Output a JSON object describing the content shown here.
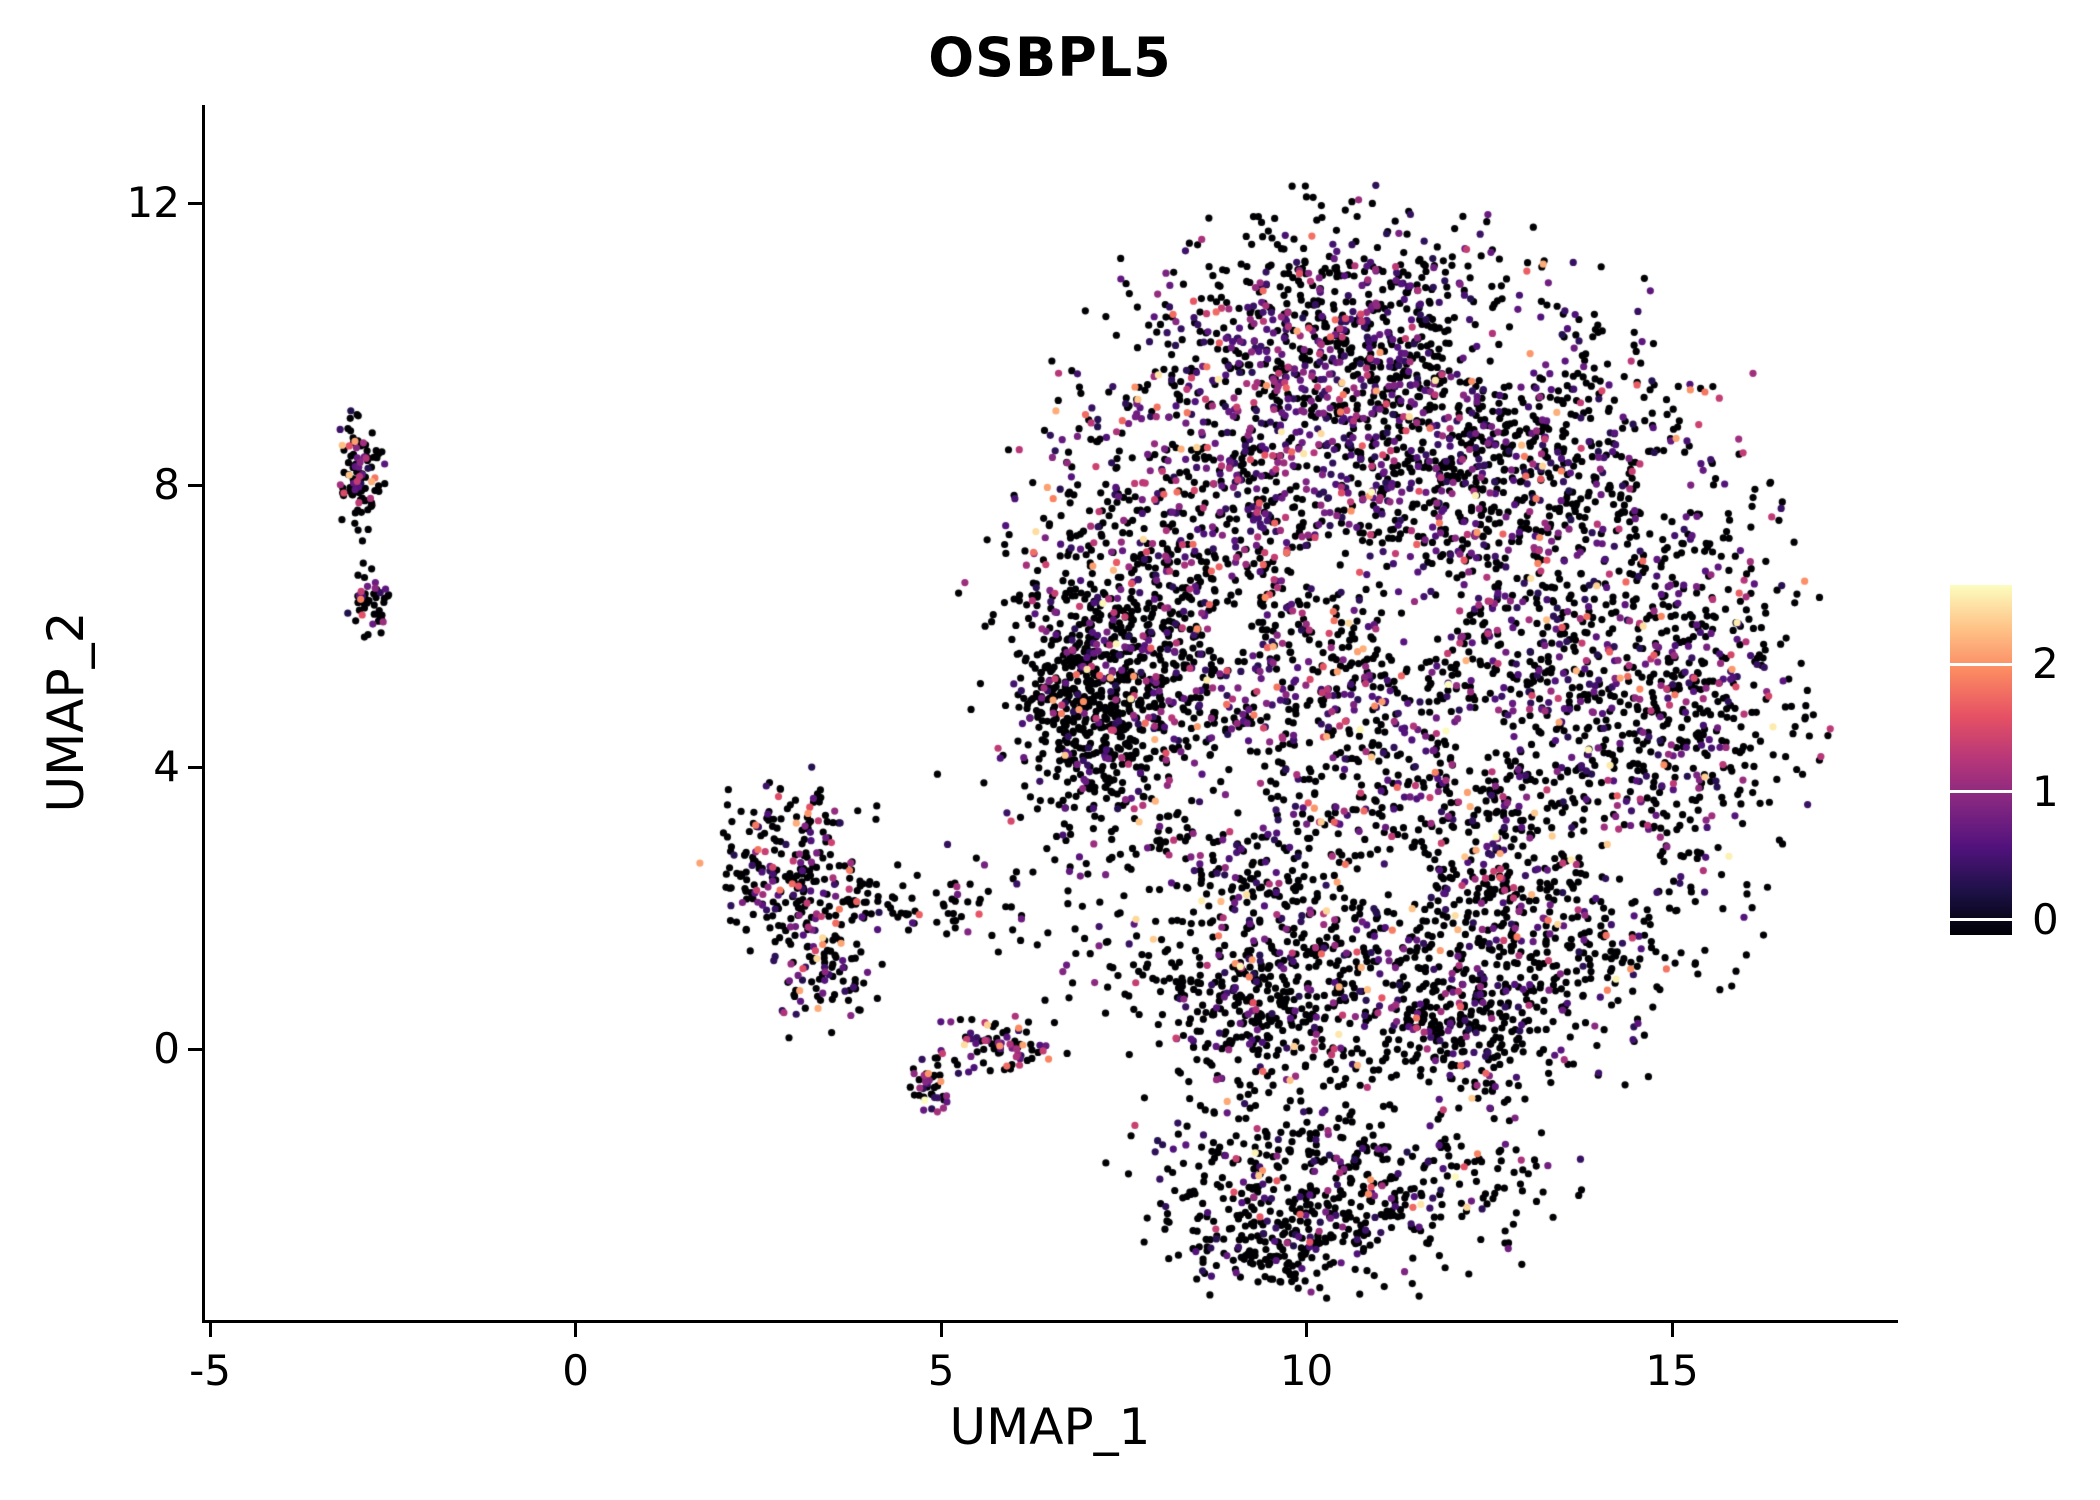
{
  "figure": {
    "background": "#FFFFFF",
    "axis_color": "#000000",
    "text_color": "#000000"
  },
  "chart_data": {
    "type": "scatter",
    "title": "OSBPL5",
    "xlabel": "UMAP_1",
    "ylabel": "UMAP_2",
    "xlim": [
      -5.07,
      18.05
    ],
    "ylim": [
      -3.84,
      13.39
    ],
    "xticks": [
      -5,
      0,
      5,
      10,
      15
    ],
    "yticks": [
      0,
      4,
      8,
      12
    ],
    "grid": false,
    "legend_position": "right",
    "point_radius_px": 3.6,
    "seed": 7,
    "colorbar": {
      "ticks": [
        0,
        1,
        2
      ],
      "vmin": -0.12,
      "vmax": 2.62,
      "color_scale_max": 2.6,
      "tick_color": "#FFFFFF",
      "label_color": "#000000"
    },
    "colormap_name": "magma",
    "colormap_stops": [
      [
        0.0,
        "#000004"
      ],
      [
        0.125,
        "#1D1147"
      ],
      [
        0.25,
        "#51127C"
      ],
      [
        0.375,
        "#822681"
      ],
      [
        0.5,
        "#B63679"
      ],
      [
        0.625,
        "#E65164"
      ],
      [
        0.75,
        "#FB8861"
      ],
      [
        0.875,
        "#FEC287"
      ],
      [
        1.0,
        "#FCFDBF"
      ]
    ],
    "expr_bins": [
      [
        0,
        0
      ],
      [
        0.35,
        0.85
      ],
      [
        0.85,
        1.45
      ],
      [
        1.5,
        2.2
      ],
      [
        2.2,
        2.6
      ]
    ],
    "hole_reject_prob": 0.82,
    "holes": [
      {
        "x": 8.85,
        "y": 3.7,
        "r": 0.65
      },
      {
        "x": 11.5,
        "y": 6.1,
        "r": 0.55
      },
      {
        "x": 12.7,
        "y": 9.9,
        "r": 0.6
      },
      {
        "x": 10.4,
        "y": 6.9,
        "r": 0.45
      },
      {
        "x": 14.3,
        "y": 2.6,
        "r": 0.55
      },
      {
        "x": 11.15,
        "y": 2.45,
        "r": 0.5
      },
      {
        "x": 8.05,
        "y": 2.3,
        "r": 0.45
      },
      {
        "x": 12.4,
        "y": 4.4,
        "r": 0.4
      },
      {
        "x": 15.0,
        "y": 8.0,
        "r": 0.45
      },
      {
        "x": 9.0,
        "y": 5.9,
        "r": 0.4
      },
      {
        "x": 11.3,
        "y": -0.9,
        "r": 0.5
      }
    ],
    "clusters": [
      {
        "name": "left-strip-upper",
        "cx": -2.95,
        "cy": 8.15,
        "sx": 0.14,
        "sy": 0.42,
        "n": 110,
        "expr_probs": [
          0.8,
          0.1,
          0.05,
          0.04,
          0.01
        ]
      },
      {
        "name": "left-strip-lower",
        "cx": -2.8,
        "cy": 6.38,
        "sx": 0.13,
        "sy": 0.24,
        "n": 48,
        "expr_probs": [
          0.58,
          0.2,
          0.14,
          0.07,
          0.01
        ]
      },
      {
        "name": "mid-cluster-core",
        "cx": 2.95,
        "cy": 2.55,
        "sx": 0.55,
        "sy": 0.62,
        "n": 250,
        "expr_probs": [
          0.7,
          0.15,
          0.08,
          0.06,
          0.01
        ]
      },
      {
        "name": "mid-cluster-right-tail",
        "cx": 4.55,
        "cy": 2.05,
        "sx": 0.75,
        "sy": 0.22,
        "n": 70,
        "expr_probs": [
          0.78,
          0.11,
          0.07,
          0.03,
          0.01
        ]
      },
      {
        "name": "mid-cluster-lower-tail",
        "cx": 3.4,
        "cy": 1.05,
        "sx": 0.33,
        "sy": 0.45,
        "n": 85,
        "expr_probs": [
          0.66,
          0.17,
          0.1,
          0.06,
          0.01
        ]
      },
      {
        "name": "mid-cluster-low-blob",
        "cx": 5.85,
        "cy": 0.1,
        "sx": 0.4,
        "sy": 0.22,
        "n": 80,
        "expr_probs": [
          0.52,
          0.26,
          0.16,
          0.05,
          0.01
        ]
      },
      {
        "name": "mid-cluster-tiny-blob",
        "cx": 4.85,
        "cy": -0.5,
        "sx": 0.17,
        "sy": 0.2,
        "n": 40,
        "expr_probs": [
          0.5,
          0.28,
          0.16,
          0.05,
          0.01
        ]
      },
      {
        "name": "main-top-cap",
        "cx": 10.6,
        "cy": 10.55,
        "sx": 1.3,
        "sy": 0.7,
        "n": 430,
        "expr_probs": [
          0.64,
          0.21,
          0.11,
          0.03,
          0.01
        ]
      },
      {
        "name": "main-upper-core",
        "cx": 9.9,
        "cy": 8.7,
        "sx": 1.6,
        "sy": 1.1,
        "n": 950,
        "expr_probs": [
          0.5,
          0.27,
          0.17,
          0.05,
          0.01
        ]
      },
      {
        "name": "main-upper-right",
        "cx": 12.9,
        "cy": 8.7,
        "sx": 1.4,
        "sy": 1.0,
        "n": 600,
        "expr_probs": [
          0.66,
          0.2,
          0.1,
          0.03,
          0.01
        ]
      },
      {
        "name": "main-left-wing",
        "cx": 7.5,
        "cy": 5.6,
        "sx": 0.9,
        "sy": 1.3,
        "n": 650,
        "expr_probs": [
          0.76,
          0.14,
          0.07,
          0.02,
          0.01
        ]
      },
      {
        "name": "main-left-dense-edge",
        "cx": 6.9,
        "cy": 5.0,
        "sx": 0.45,
        "sy": 0.75,
        "n": 330,
        "expr_probs": [
          0.86,
          0.08,
          0.04,
          0.015,
          0.005
        ]
      },
      {
        "name": "main-center",
        "cx": 10.2,
        "cy": 5.2,
        "sx": 1.7,
        "sy": 1.4,
        "n": 820,
        "expr_probs": [
          0.58,
          0.23,
          0.13,
          0.05,
          0.01
        ]
      },
      {
        "name": "main-right",
        "cx": 13.6,
        "cy": 5.3,
        "sx": 1.4,
        "sy": 1.7,
        "n": 820,
        "expr_probs": [
          0.64,
          0.21,
          0.11,
          0.03,
          0.01
        ]
      },
      {
        "name": "main-far-right",
        "cx": 15.4,
        "cy": 5.2,
        "sx": 0.7,
        "sy": 1.4,
        "n": 300,
        "expr_probs": [
          0.7,
          0.18,
          0.09,
          0.02,
          0.01
        ]
      },
      {
        "name": "main-lower-mid",
        "cx": 9.8,
        "cy": 2.2,
        "sx": 1.9,
        "sy": 1.1,
        "n": 650,
        "expr_probs": [
          0.76,
          0.13,
          0.08,
          0.02,
          0.01
        ]
      },
      {
        "name": "main-lower-right",
        "cx": 13.2,
        "cy": 1.8,
        "sx": 1.2,
        "sy": 1.0,
        "n": 430,
        "expr_probs": [
          0.73,
          0.16,
          0.08,
          0.02,
          0.01
        ]
      },
      {
        "name": "main-dense-band-left",
        "cx": 9.4,
        "cy": 0.5,
        "sx": 0.8,
        "sy": 0.6,
        "n": 300,
        "expr_probs": [
          0.78,
          0.13,
          0.06,
          0.02,
          0.01
        ]
      },
      {
        "name": "main-dense-band-right",
        "cx": 11.9,
        "cy": 0.3,
        "sx": 0.8,
        "sy": 0.5,
        "n": 260,
        "expr_probs": [
          0.78,
          0.13,
          0.06,
          0.02,
          0.01
        ]
      },
      {
        "name": "bottom-lobe",
        "cx": 10.4,
        "cy": -1.8,
        "sx": 1.4,
        "sy": 0.7,
        "n": 520,
        "expr_probs": [
          0.79,
          0.13,
          0.05,
          0.02,
          0.01
        ]
      },
      {
        "name": "bottom-tip",
        "cx": 9.6,
        "cy": -2.7,
        "sx": 0.7,
        "sy": 0.35,
        "n": 150,
        "expr_probs": [
          0.82,
          0.11,
          0.04,
          0.02,
          0.01
        ]
      }
    ],
    "extra_points": [
      {
        "x": 15.25,
        "y": 9.35,
        "v": 2.0
      },
      {
        "x": 15.45,
        "y": 9.32,
        "v": 1.85
      },
      {
        "x": 4.12,
        "y": 3.45,
        "v": 0
      },
      {
        "x": 4.95,
        "y": 3.9,
        "v": 0
      }
    ]
  }
}
